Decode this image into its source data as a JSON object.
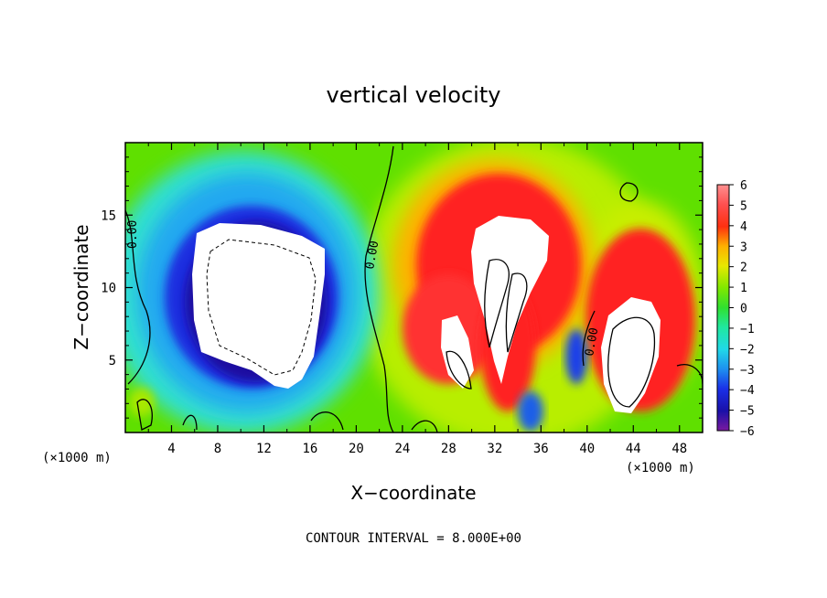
{
  "chart_data": {
    "type": "heatmap",
    "title": "vertical velocity",
    "xlabel": "X−coordinate",
    "ylabel": "Z−coordinate",
    "x_unit": "(×1000 m)",
    "x_unit_right": "(×1000 m)",
    "xlim": [
      0,
      50
    ],
    "ylim": [
      0,
      20
    ],
    "x_ticks": [
      "4",
      "8",
      "12",
      "16",
      "20",
      "24",
      "28",
      "32",
      "36",
      "40",
      "44",
      "48"
    ],
    "y_ticks": [
      "5",
      "10",
      "15"
    ],
    "colorbar": {
      "ticks": [
        "6",
        "5",
        "4",
        "3",
        "2",
        "1",
        "0",
        "−1",
        "−2",
        "−3",
        "−4",
        "−5",
        "−6"
      ],
      "range": [
        -6,
        6
      ]
    },
    "footer": "CONTOUR INTERVAL = 8.000E+00",
    "contour_labels": [
      "0.00",
      "0.00",
      "0.00"
    ],
    "colors": {
      "background_green": "#5fe000",
      "blue": "#1f2fe0",
      "red": "#ff2020",
      "white_saturated": "#ffffff"
    }
  }
}
